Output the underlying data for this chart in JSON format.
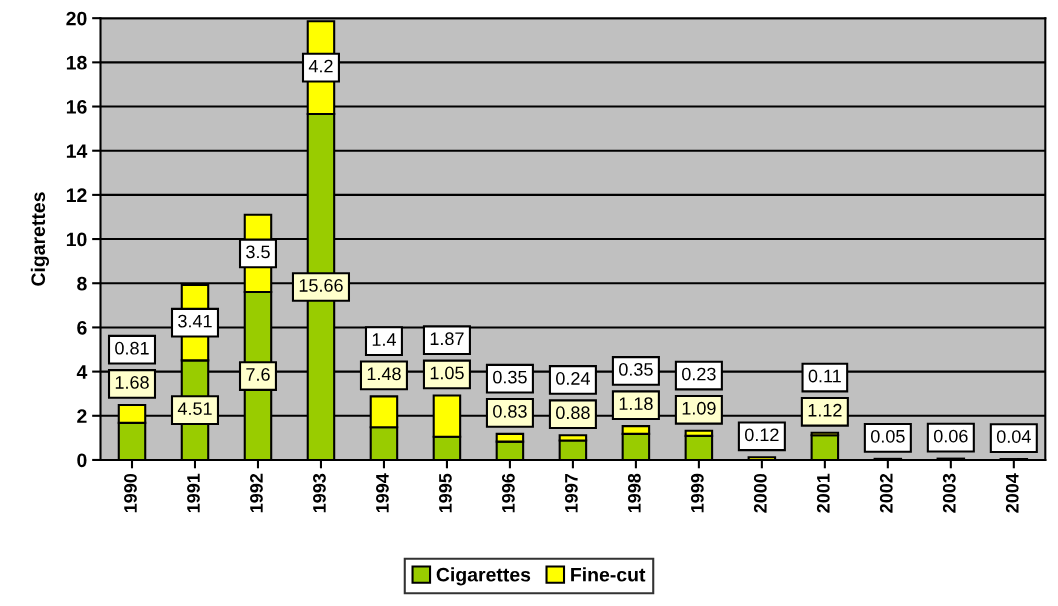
{
  "chart_data": {
    "type": "bar",
    "stacked": true,
    "ylabel": "Cigarettes",
    "categories": [
      "1990",
      "1991",
      "1992",
      "1993",
      "1994",
      "1995",
      "1996",
      "1997",
      "1998",
      "1999",
      "2000",
      "2001",
      "2002",
      "2003",
      "2004"
    ],
    "series": [
      {
        "name": "Cigarettes",
        "color": "#99cc00",
        "values": [
          1.68,
          4.51,
          7.6,
          15.66,
          1.48,
          1.05,
          0.83,
          0.88,
          1.18,
          1.09,
          null,
          1.12,
          null,
          null,
          null
        ]
      },
      {
        "name": "Fine-cut",
        "color": "#ffff00",
        "values": [
          0.81,
          3.41,
          3.5,
          4.2,
          1.4,
          1.87,
          0.35,
          0.24,
          0.35,
          0.23,
          0.12,
          0.11,
          0.05,
          0.06,
          0.04
        ]
      }
    ],
    "ylim": [
      0,
      20
    ],
    "yticks": [
      0,
      2,
      4,
      6,
      8,
      10,
      12,
      14,
      16,
      18,
      20
    ],
    "grid": "y",
    "legend": "bottom",
    "data_labels": true
  }
}
